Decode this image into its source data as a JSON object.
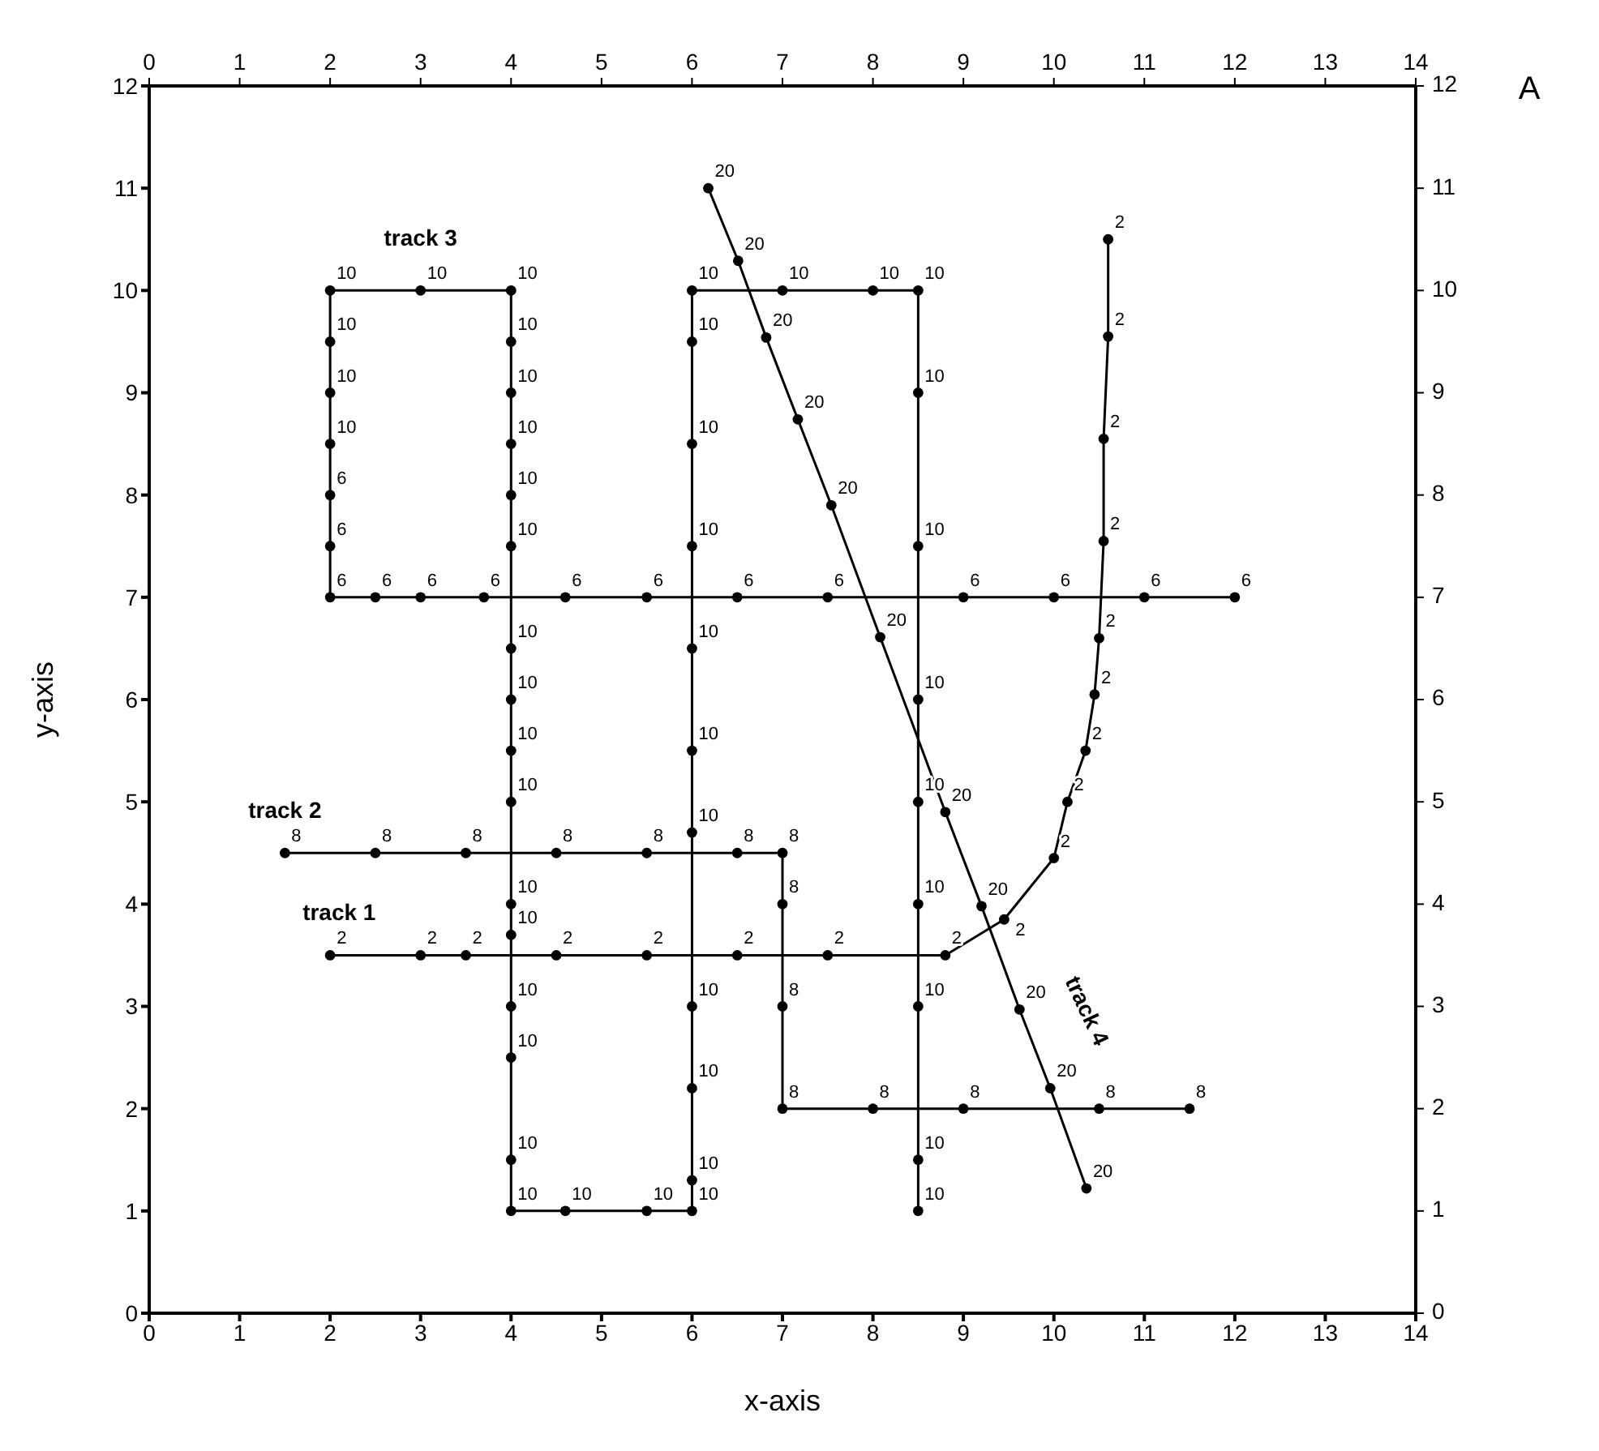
{
  "chart_data": {
    "type": "line",
    "xlabel": "x-axis",
    "ylabel": "y-axis",
    "xlim": [
      0,
      14
    ],
    "xticks": [
      0,
      1,
      2,
      3,
      4,
      5,
      6,
      7,
      8,
      9,
      10,
      11,
      12,
      13,
      14
    ],
    "x2lim": [
      0,
      14
    ],
    "x2ticks": [
      0,
      1,
      2,
      3,
      4,
      5,
      6,
      7,
      8,
      9,
      10,
      11,
      12,
      13,
      14
    ],
    "ylim": [
      0,
      12
    ],
    "yticks": [
      0,
      1,
      2,
      3,
      4,
      5,
      6,
      7,
      8,
      9,
      10,
      11,
      12
    ],
    "y2lim": [
      0,
      12
    ],
    "y2ticks": [
      0,
      1,
      2,
      3,
      4,
      5,
      6,
      7,
      8,
      9,
      10,
      11,
      12
    ],
    "marker": "circle",
    "line_style": "solid",
    "annotations": [
      "track 3",
      "track 2",
      "track 1",
      "track 4",
      "A",
      {
        "text": "2",
        "x": 2,
        "y": 3.5
      },
      {
        "text": "2",
        "x": 3,
        "y": 3.5
      },
      {
        "text": "2",
        "x": 3.5,
        "y": 3.5
      },
      {
        "text": "2",
        "x": 4.5,
        "y": 3.5
      },
      {
        "text": "2",
        "x": 5.5,
        "y": 3.5
      },
      {
        "text": "2",
        "x": 6.5,
        "y": 3.5
      },
      {
        "text": "2",
        "x": 7.5,
        "y": 3.5
      },
      {
        "text": "2",
        "x": 8.8,
        "y": 3.5
      },
      {
        "text": "2",
        "x": 9.45,
        "y": 3.85
      },
      {
        "text": "2",
        "x": 10,
        "y": 4.45
      },
      {
        "text": "2",
        "x": 10.15,
        "y": 5
      },
      {
        "text": "2",
        "x": 10.35,
        "y": 5.5
      },
      {
        "text": "2",
        "x": 10.45,
        "y": 6.05
      },
      {
        "text": "2",
        "x": 10.5,
        "y": 6.6
      },
      {
        "text": "2",
        "x": 10.55,
        "y": 7.55
      },
      {
        "text": "2",
        "x": 10.55,
        "y": 8.55
      },
      {
        "text": "2",
        "x": 10.6,
        "y": 9.55
      },
      {
        "text": "2",
        "x": 10.6,
        "y": 10.5
      },
      {
        "text": "8",
        "x": 1.5,
        "y": 4.5
      },
      {
        "text": "8",
        "x": 2.5,
        "y": 4.5
      },
      {
        "text": "8",
        "x": 3.5,
        "y": 4.5
      },
      {
        "text": "8",
        "x": 4.5,
        "y": 4.5
      },
      {
        "text": "8",
        "x": 5.5,
        "y": 4.5
      },
      {
        "text": "8",
        "x": 6.5,
        "y": 4.5
      },
      {
        "text": "8",
        "x": 7,
        "y": 4.5
      },
      {
        "text": "8",
        "x": 7,
        "y": 4
      },
      {
        "text": "8",
        "x": 7,
        "y": 3
      },
      {
        "text": "8",
        "x": 7,
        "y": 2
      },
      {
        "text": "8",
        "x": 8,
        "y": 2
      },
      {
        "text": "8",
        "x": 9,
        "y": 2
      },
      {
        "text": "8",
        "x": 10.5,
        "y": 2
      },
      {
        "text": "8",
        "x": 11.5,
        "y": 2
      },
      {
        "text": "6",
        "x": 12,
        "y": 7
      },
      {
        "text": "6",
        "x": 11,
        "y": 7
      },
      {
        "text": "6",
        "x": 10,
        "y": 7
      },
      {
        "text": "6",
        "x": 9,
        "y": 7
      },
      {
        "text": "6",
        "x": 7.5,
        "y": 7
      },
      {
        "text": "6",
        "x": 6.5,
        "y": 7
      },
      {
        "text": "6",
        "x": 5.5,
        "y": 7
      },
      {
        "text": "6",
        "x": 4.6,
        "y": 7
      },
      {
        "text": "6",
        "x": 3.7,
        "y": 7
      },
      {
        "text": "6",
        "x": 3,
        "y": 7
      },
      {
        "text": "6",
        "x": 2.5,
        "y": 7
      },
      {
        "text": "6",
        "x": 2,
        "y": 7
      },
      {
        "text": "6",
        "x": 2,
        "y": 7.5
      },
      {
        "text": "6",
        "x": 2,
        "y": 8
      },
      {
        "text": "10",
        "x": 2,
        "y": 8.5
      },
      {
        "text": "10",
        "x": 2,
        "y": 9
      },
      {
        "text": "10",
        "x": 2,
        "y": 9.5
      },
      {
        "text": "10",
        "x": 2,
        "y": 10
      },
      {
        "text": "10",
        "x": 3,
        "y": 10
      },
      {
        "text": "10",
        "x": 4,
        "y": 10
      },
      {
        "text": "10",
        "x": 4,
        "y": 9.5
      },
      {
        "text": "10",
        "x": 4,
        "y": 9
      },
      {
        "text": "10",
        "x": 4,
        "y": 8.5
      },
      {
        "text": "10",
        "x": 4,
        "y": 8
      },
      {
        "text": "10",
        "x": 4,
        "y": 7.5
      },
      {
        "text": "10",
        "x": 4,
        "y": 6.5
      },
      {
        "text": "10",
        "x": 4,
        "y": 6
      },
      {
        "text": "10",
        "x": 4,
        "y": 5.5
      },
      {
        "text": "10",
        "x": 4,
        "y": 5
      },
      {
        "text": "10",
        "x": 4,
        "y": 4
      },
      {
        "text": "10",
        "x": 4,
        "y": 3.7
      },
      {
        "text": "10",
        "x": 4,
        "y": 3
      },
      {
        "text": "10",
        "x": 4,
        "y": 2.5
      },
      {
        "text": "10",
        "x": 4,
        "y": 1.5
      },
      {
        "text": "10",
        "x": 4,
        "y": 1
      },
      {
        "text": "10",
        "x": 4.6,
        "y": 1
      },
      {
        "text": "10",
        "x": 5.5,
        "y": 1
      },
      {
        "text": "10",
        "x": 6,
        "y": 1
      },
      {
        "text": "10",
        "x": 6,
        "y": 1.3
      },
      {
        "text": "10",
        "x": 6,
        "y": 2.2
      },
      {
        "text": "10",
        "x": 6,
        "y": 3
      },
      {
        "text": "10",
        "x": 6,
        "y": 4.7
      },
      {
        "text": "10",
        "x": 6,
        "y": 5.5
      },
      {
        "text": "10",
        "x": 6,
        "y": 6.5
      },
      {
        "text": "10",
        "x": 6,
        "y": 7.5
      },
      {
        "text": "10",
        "x": 6,
        "y": 8.5
      },
      {
        "text": "10",
        "x": 6,
        "y": 9.5
      },
      {
        "text": "10",
        "x": 6,
        "y": 10
      },
      {
        "text": "10",
        "x": 7,
        "y": 10
      },
      {
        "text": "10",
        "x": 8,
        "y": 10
      },
      {
        "text": "10",
        "x": 8.5,
        "y": 10
      },
      {
        "text": "10",
        "x": 8.5,
        "y": 9
      },
      {
        "text": "10",
        "x": 8.5,
        "y": 7.5
      },
      {
        "text": "10",
        "x": 8.5,
        "y": 6
      },
      {
        "text": "10",
        "x": 8.5,
        "y": 5
      },
      {
        "text": "10",
        "x": 8.5,
        "y": 4
      },
      {
        "text": "10",
        "x": 8.5,
        "y": 3
      },
      {
        "text": "10",
        "x": 8.5,
        "y": 1.5
      },
      {
        "text": "10",
        "x": 8.5,
        "y": 1
      },
      {
        "text": "20",
        "x": 6.18,
        "y": 11
      },
      {
        "text": "20",
        "x": 6.51,
        "y": 10.29
      },
      {
        "text": "20",
        "x": 6.82,
        "y": 9.54
      },
      {
        "text": "20",
        "x": 7.17,
        "y": 8.74
      },
      {
        "text": "20",
        "x": 7.54,
        "y": 7.9
      },
      {
        "text": "20",
        "x": 8.08,
        "y": 6.61
      },
      {
        "text": "20",
        "x": 8.8,
        "y": 4.9
      },
      {
        "text": "20",
        "x": 9.2,
        "y": 3.98
      },
      {
        "text": "20",
        "x": 9.62,
        "y": 2.97
      },
      {
        "text": "20",
        "x": 9.96,
        "y": 2.2
      },
      {
        "text": "20",
        "x": 10.36,
        "y": 1.22
      }
    ],
    "series": [
      {
        "color": "#000000",
        "x": [
          2,
          3,
          3.5,
          4.5,
          5.5,
          6.5,
          7.5,
          8.8,
          9.45,
          10,
          10.15,
          10.35,
          10.45,
          10.5,
          10.55,
          10.55,
          10.6,
          10.6
        ],
        "values": [
          3.5,
          3.5,
          3.5,
          3.5,
          3.5,
          3.5,
          3.5,
          3.5,
          3.85,
          4.45,
          5,
          5.5,
          6.05,
          6.6,
          7.55,
          8.55,
          9.55,
          10.5
        ]
      },
      {
        "color": "#000000",
        "x": [
          1.5,
          2.5,
          3.5,
          4.5,
          5.5,
          6.5,
          7,
          7,
          7,
          7,
          8,
          9,
          10.5,
          11.5
        ],
        "values": [
          4.5,
          4.5,
          4.5,
          4.5,
          4.5,
          4.5,
          4.5,
          4,
          3,
          2,
          2,
          2,
          2,
          2
        ]
      },
      {
        "color": "#000000",
        "x": [
          12,
          11,
          10,
          9,
          7.5,
          6.5,
          5.5,
          4.6,
          3.7,
          3,
          2.5,
          2,
          2,
          2,
          2,
          2,
          2,
          2,
          3,
          4,
          4,
          4,
          4,
          4,
          4,
          4,
          4,
          4,
          4,
          4,
          4,
          4,
          4,
          4,
          4,
          4.6,
          5.5,
          6,
          6,
          6,
          6,
          6,
          6,
          6,
          6,
          6,
          6,
          6,
          7,
          8,
          8.5,
          8.5,
          8.5,
          8.5,
          8.5,
          8.5,
          8.5,
          8.5,
          8.5
        ],
        "values": [
          7,
          7,
          7,
          7,
          7,
          7,
          7,
          7,
          7,
          7,
          7,
          7,
          7.5,
          8,
          8.5,
          9,
          9.5,
          10,
          10,
          10,
          9.5,
          9,
          8.5,
          8,
          7.5,
          6.5,
          6,
          5.5,
          5,
          4,
          3.7,
          3,
          2.5,
          1.5,
          1,
          1,
          1,
          1,
          1.3,
          2.2,
          3,
          4.7,
          5.5,
          6.5,
          7.5,
          8.5,
          9.5,
          10,
          10,
          10,
          10,
          9,
          7.5,
          6,
          5,
          4,
          3,
          1.5,
          1
        ]
      },
      {
        "color": "#000000",
        "x": [
          6.18,
          6.51,
          6.82,
          7.17,
          7.54,
          8.08,
          8.8,
          9.2,
          9.62,
          9.96,
          10.36
        ],
        "values": [
          11,
          10.29,
          9.54,
          8.74,
          7.9,
          6.61,
          4.9,
          3.98,
          2.97,
          2.2,
          1.22
        ]
      }
    ]
  }
}
